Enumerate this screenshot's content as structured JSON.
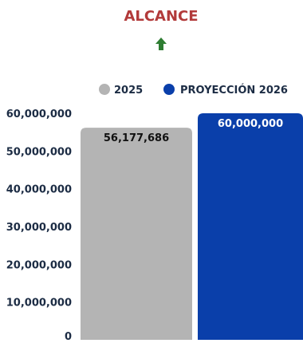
{
  "chart_data": {
    "type": "bar",
    "title": "ALCANCE",
    "indicator_icon": "up-arrow-icon",
    "categories": [
      "2025",
      "PROYECCIÓN 2026"
    ],
    "series": [
      {
        "name": "2025",
        "values": [
          56177686,
          null
        ]
      },
      {
        "name": "PROYECCIÓN 2026",
        "values": [
          null,
          60000000
        ]
      }
    ],
    "data_labels": [
      "56,177,686",
      "60,000,000"
    ],
    "legend": {
      "placement": "top",
      "entries": [
        "2025",
        "PROYECCIÓN 2026"
      ]
    },
    "ylim": [
      0,
      60000000
    ],
    "ytick_labels": [
      "0",
      "10,000,000",
      "20,000,000",
      "30,000,000",
      "40,000,000",
      "50,000,000",
      "60,000,000"
    ],
    "xlabel": "",
    "ylabel": "",
    "grid": false,
    "colors": {
      "title": "#b23a3a",
      "arrow": "#2e7d32",
      "series_2025": "#b4b4b4",
      "series_2026": "#0a3faa",
      "label_dark": "#111111",
      "label_light": "#ffffff",
      "tick": "#1c2c44"
    }
  }
}
